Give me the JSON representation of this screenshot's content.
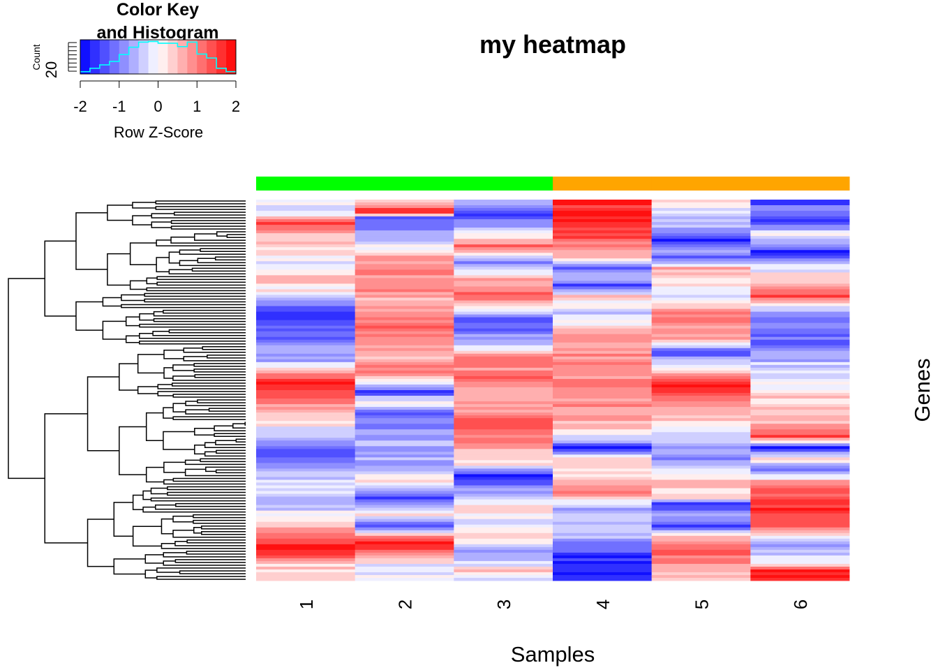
{
  "chart_data": {
    "type": "heatmap",
    "title": "my heatmap",
    "xlabel": "Samples",
    "ylabel": "Genes",
    "columns": [
      "1",
      "2",
      "3",
      "4",
      "5",
      "6"
    ],
    "column_groups": [
      {
        "color": "#00ff00",
        "columns": [
          "1",
          "2",
          "3"
        ]
      },
      {
        "color": "#ffa500",
        "columns": [
          "4",
          "5",
          "6"
        ]
      }
    ],
    "value_range": [
      -2,
      2
    ],
    "color_scale": [
      "#0000ff",
      "#ffffff",
      "#ff0000"
    ],
    "n_rows": 136,
    "column_profiles": [
      [
        [
          0,
          0.2
        ],
        [
          4,
          -0.4
        ],
        [
          8,
          1.6
        ],
        [
          12,
          0.5
        ],
        [
          18,
          0.3
        ],
        [
          22,
          -0.2
        ],
        [
          28,
          0.6
        ],
        [
          34,
          -0.3
        ],
        [
          40,
          -1.7
        ],
        [
          48,
          -1.2
        ],
        [
          56,
          -0.8
        ],
        [
          60,
          0.2
        ],
        [
          64,
          1.8
        ],
        [
          70,
          1.3
        ],
        [
          78,
          0.3
        ],
        [
          84,
          -0.4
        ],
        [
          90,
          -1.5
        ],
        [
          96,
          -0.8
        ],
        [
          102,
          -0.2
        ],
        [
          108,
          -0.7
        ],
        [
          114,
          0.4
        ],
        [
          120,
          1.0
        ],
        [
          124,
          1.9
        ],
        [
          130,
          0.3
        ],
        [
          135,
          0.5
        ]
      ],
      [
        [
          0,
          0.4
        ],
        [
          4,
          1.8
        ],
        [
          6,
          -1.2
        ],
        [
          14,
          -0.6
        ],
        [
          20,
          0.8
        ],
        [
          28,
          1.0
        ],
        [
          36,
          0.5
        ],
        [
          42,
          0.9
        ],
        [
          46,
          1.2
        ],
        [
          52,
          0.6
        ],
        [
          58,
          0.8
        ],
        [
          62,
          1.0
        ],
        [
          68,
          -1.5
        ],
        [
          72,
          0.2
        ],
        [
          76,
          -1.3
        ],
        [
          86,
          -0.5
        ],
        [
          94,
          -0.8
        ],
        [
          100,
          0.4
        ],
        [
          106,
          -1.4
        ],
        [
          112,
          0.3
        ],
        [
          116,
          -1.5
        ],
        [
          120,
          0.8
        ],
        [
          122,
          1.9
        ],
        [
          126,
          0.9
        ],
        [
          132,
          -0.5
        ],
        [
          135,
          0.1
        ]
      ],
      [
        [
          0,
          -0.6
        ],
        [
          6,
          -1.4
        ],
        [
          10,
          -0.5
        ],
        [
          16,
          1.2
        ],
        [
          22,
          -1.0
        ],
        [
          28,
          0.7
        ],
        [
          34,
          1.2
        ],
        [
          40,
          -0.3
        ],
        [
          42,
          -1.4
        ],
        [
          50,
          -0.8
        ],
        [
          56,
          0.8
        ],
        [
          64,
          1.1
        ],
        [
          70,
          0.6
        ],
        [
          76,
          0.9
        ],
        [
          80,
          1.5
        ],
        [
          86,
          0.8
        ],
        [
          94,
          0.2
        ],
        [
          98,
          -1.9
        ],
        [
          104,
          -0.6
        ],
        [
          110,
          0.2
        ],
        [
          116,
          -0.3
        ],
        [
          120,
          0.6
        ],
        [
          126,
          -1.0
        ],
        [
          132,
          0.3
        ],
        [
          135,
          -0.2
        ]
      ],
      [
        [
          0,
          1.6
        ],
        [
          4,
          1.9
        ],
        [
          12,
          1.4
        ],
        [
          20,
          0.6
        ],
        [
          24,
          -1.2
        ],
        [
          28,
          -0.4
        ],
        [
          30,
          -1.8
        ],
        [
          34,
          0.4
        ],
        [
          40,
          -0.4
        ],
        [
          48,
          0.6
        ],
        [
          56,
          0.9
        ],
        [
          64,
          1.0
        ],
        [
          72,
          0.8
        ],
        [
          80,
          0.5
        ],
        [
          86,
          -0.6
        ],
        [
          88,
          -1.9
        ],
        [
          92,
          0.4
        ],
        [
          98,
          0.2
        ],
        [
          104,
          1.0
        ],
        [
          110,
          -0.8
        ],
        [
          114,
          -0.4
        ],
        [
          120,
          -0.6
        ],
        [
          126,
          -1.4
        ],
        [
          130,
          -1.9
        ],
        [
          135,
          -1.6
        ]
      ],
      [
        [
          0,
          0.3
        ],
        [
          4,
          -0.2
        ],
        [
          10,
          -0.6
        ],
        [
          14,
          -1.8
        ],
        [
          18,
          -0.4
        ],
        [
          20,
          -1.6
        ],
        [
          24,
          0.6
        ],
        [
          30,
          0.2
        ],
        [
          34,
          -0.3
        ],
        [
          40,
          1.0
        ],
        [
          46,
          0.8
        ],
        [
          50,
          0.4
        ],
        [
          54,
          -1.4
        ],
        [
          60,
          0.2
        ],
        [
          66,
          1.8
        ],
        [
          72,
          0.9
        ],
        [
          78,
          0.5
        ],
        [
          86,
          -0.6
        ],
        [
          92,
          -1.0
        ],
        [
          100,
          0.6
        ],
        [
          106,
          0.2
        ],
        [
          108,
          -1.9
        ],
        [
          112,
          -0.4
        ],
        [
          116,
          -1.6
        ],
        [
          120,
          0.5
        ],
        [
          126,
          1.2
        ],
        [
          130,
          0.8
        ],
        [
          135,
          0.4
        ]
      ],
      [
        [
          0,
          -1.6
        ],
        [
          4,
          -0.8
        ],
        [
          8,
          -1.5
        ],
        [
          12,
          0.2
        ],
        [
          18,
          -1.7
        ],
        [
          22,
          -0.6
        ],
        [
          30,
          0.8
        ],
        [
          34,
          1.6
        ],
        [
          38,
          -0.5
        ],
        [
          44,
          -0.9
        ],
        [
          50,
          -1.2
        ],
        [
          56,
          -0.6
        ],
        [
          62,
          -0.3
        ],
        [
          68,
          0.2
        ],
        [
          74,
          0.4
        ],
        [
          80,
          0.6
        ],
        [
          84,
          1.5
        ],
        [
          88,
          -1.7
        ],
        [
          92,
          0.2
        ],
        [
          96,
          -0.9
        ],
        [
          100,
          0.6
        ],
        [
          104,
          1.4
        ],
        [
          110,
          1.7
        ],
        [
          116,
          1.3
        ],
        [
          122,
          -0.8
        ],
        [
          128,
          -0.3
        ],
        [
          132,
          1.7
        ],
        [
          135,
          1.9
        ]
      ]
    ]
  },
  "color_key": {
    "title_line1": "Color Key",
    "title_line2": "and Histogram",
    "ylabel": "Count",
    "ytick": "20",
    "xlabel": "Row Z-Score",
    "xticks": [
      "-2",
      "-1",
      "0",
      "1",
      "2"
    ],
    "n_bins": 16,
    "histogram": [
      4,
      10,
      16,
      22,
      34,
      47,
      56,
      57,
      54,
      54,
      48,
      56,
      35,
      28,
      10,
      4
    ],
    "histogram_color": "#00ffff"
  }
}
